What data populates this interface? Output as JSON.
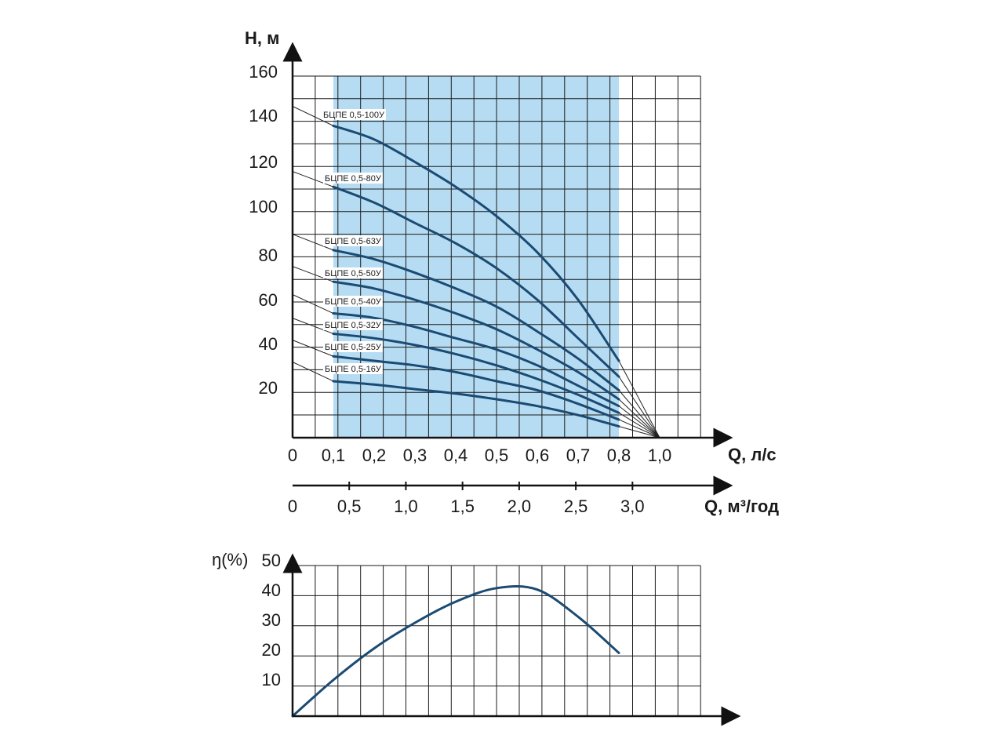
{
  "colors": {
    "fill": "#b5dcf3",
    "curve": "#1b4a72",
    "grid": "#1a1a1a",
    "axis": "#111111"
  },
  "chart_data": [
    {
      "type": "line",
      "name": "head-curves",
      "ylabel": "H, м",
      "xlabel": "Q, л/с",
      "xlabel2": "Q, м³/год",
      "xlim": [
        0,
        1.0
      ],
      "ylim": [
        0,
        160
      ],
      "x_ticks": [
        "0",
        "0,1",
        "0,2",
        "0,3",
        "0,4",
        "0,5",
        "0,6",
        "0,7",
        "0,8",
        "1,0"
      ],
      "y_ticks": [
        "20",
        "40",
        "60",
        "80",
        "100",
        "120",
        "140",
        "160"
      ],
      "x2_ticks": [
        "0",
        "0,5",
        "1,0",
        "1,5",
        "2,0",
        "2,5",
        "3,0"
      ],
      "grid": true,
      "shaded_range_x": [
        0.1,
        0.8
      ],
      "converge_point": [
        0.9,
        0
      ],
      "series": [
        {
          "name": "БЦПЕ 0,5-100У",
          "x": [
            0.1,
            0.2,
            0.3,
            0.4,
            0.5,
            0.6,
            0.7,
            0.8
          ],
          "values": [
            138,
            132,
            122,
            111,
            98,
            82,
            61,
            34
          ]
        },
        {
          "name": "БЦПЕ 0,5-80У",
          "x": [
            0.1,
            0.2,
            0.3,
            0.4,
            0.5,
            0.6,
            0.7,
            0.8
          ],
          "values": [
            111,
            104,
            95,
            86,
            75,
            61,
            44,
            27
          ]
        },
        {
          "name": "БЦПЕ 0,5-63У",
          "x": [
            0.1,
            0.2,
            0.3,
            0.4,
            0.5,
            0.6,
            0.7,
            0.8
          ],
          "values": [
            83,
            79,
            73,
            66,
            58,
            47,
            35,
            21
          ]
        },
        {
          "name": "БЦПЕ 0,5-50У",
          "x": [
            0.1,
            0.2,
            0.3,
            0.4,
            0.5,
            0.6,
            0.7,
            0.8
          ],
          "values": [
            69,
            66,
            61,
            55,
            48,
            39,
            29,
            17
          ]
        },
        {
          "name": "БЦПЕ 0,5-40У",
          "x": [
            0.1,
            0.2,
            0.3,
            0.4,
            0.5,
            0.6,
            0.7,
            0.8
          ],
          "values": [
            55,
            53,
            49,
            44,
            39,
            32,
            23,
            14
          ]
        },
        {
          "name": "БЦПЕ 0,5-32У",
          "x": [
            0.1,
            0.2,
            0.3,
            0.4,
            0.5,
            0.6,
            0.7,
            0.8
          ],
          "values": [
            46,
            44,
            41,
            37,
            32,
            26,
            19,
            11
          ]
        },
        {
          "name": "БЦПЕ 0,5-25У",
          "x": [
            0.1,
            0.2,
            0.3,
            0.4,
            0.5,
            0.6,
            0.7,
            0.8
          ],
          "values": [
            36,
            34,
            32,
            29,
            25,
            21,
            15,
            8
          ]
        },
        {
          "name": "БЦПЕ 0,5-16У",
          "x": [
            0.1,
            0.2,
            0.3,
            0.4,
            0.5,
            0.6,
            0.7,
            0.8
          ],
          "values": [
            25,
            23.5,
            21.5,
            19.5,
            17,
            14,
            10,
            5
          ]
        }
      ]
    },
    {
      "type": "line",
      "name": "efficiency-curve",
      "ylabel": "ŋ(%)",
      "xlim": [
        0,
        1.0
      ],
      "ylim": [
        0,
        50
      ],
      "y_ticks": [
        "10",
        "20",
        "30",
        "40",
        "50"
      ],
      "grid": true,
      "series": [
        {
          "x": [
            0,
            0.1,
            0.2,
            0.3,
            0.4,
            0.5,
            0.6,
            0.7,
            0.8
          ],
          "values": [
            0,
            12,
            22.5,
            31,
            38,
            42.5,
            42,
            33,
            21
          ]
        }
      ]
    }
  ]
}
